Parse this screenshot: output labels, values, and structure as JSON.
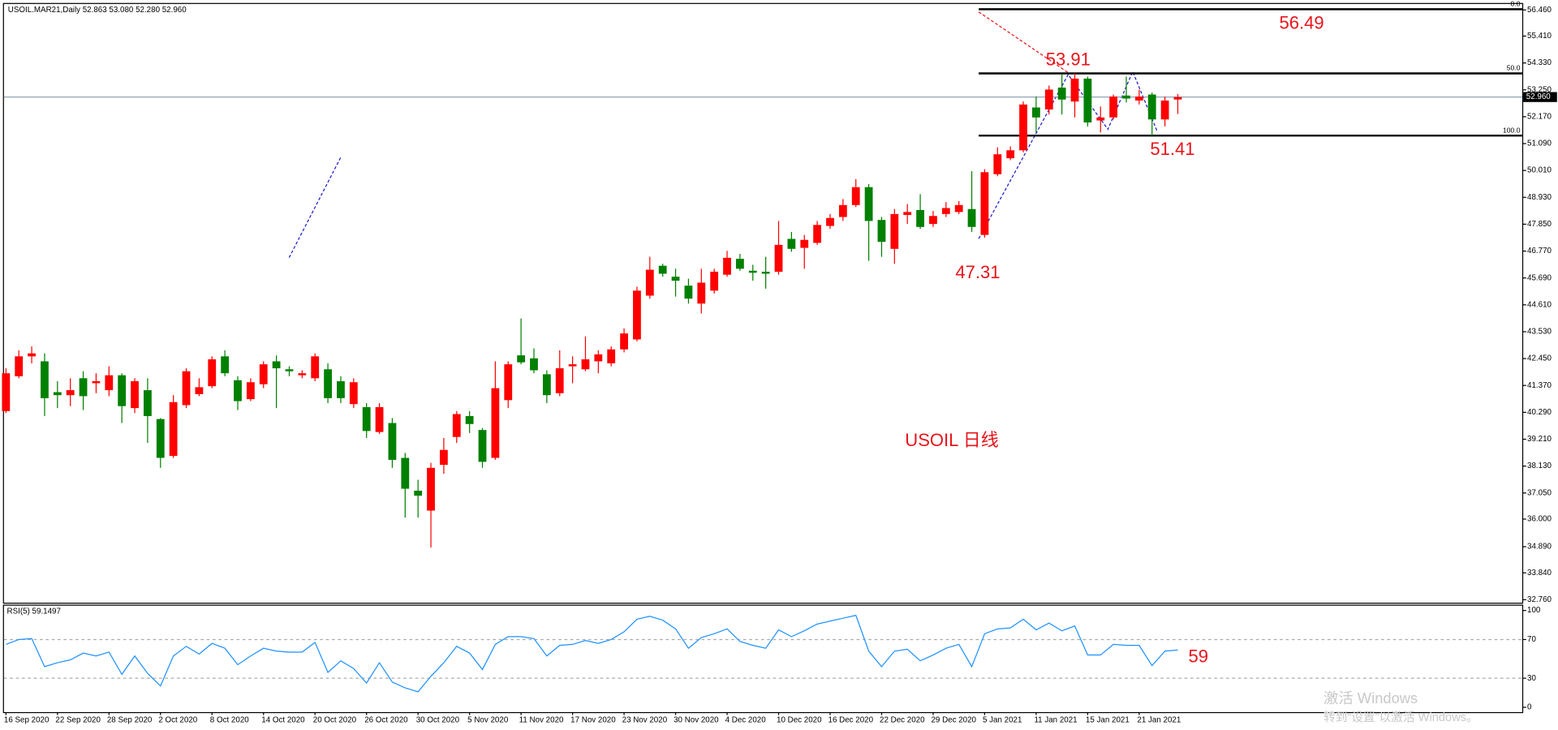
{
  "chart_data": [
    {
      "type": "candlestick",
      "header": "USOIL.MAR21,Daily  52.863 53.080 52.280 52.960",
      "categories": [
        "16 Sep 2020",
        null,
        null,
        null,
        "22 Sep 2020",
        null,
        null,
        null,
        "28 Sep 2020",
        null,
        null,
        null,
        "2 Oct 2020",
        null,
        null,
        null,
        "8 Oct 2020",
        null,
        null,
        null,
        "14 Oct 2020",
        null,
        null,
        null,
        "20 Oct 2020",
        null,
        null,
        null,
        "26 Oct 2020",
        null,
        null,
        null,
        "30 Oct 2020",
        null,
        null,
        null,
        "5 Nov 2020",
        null,
        null,
        null,
        "11 Nov 2020",
        null,
        null,
        null,
        "17 Nov 2020",
        null,
        null,
        null,
        "23 Nov 2020",
        null,
        null,
        null,
        "30 Nov 2020",
        null,
        null,
        null,
        "4 Dec 2020",
        null,
        null,
        null,
        "10 Dec 2020",
        null,
        null,
        null,
        "16 Dec 2020",
        null,
        null,
        null,
        "22 Dec 2020",
        null,
        null,
        null,
        "29 Dec 2020",
        null,
        null,
        null,
        "5 Jan 2021",
        null,
        null,
        null,
        "11 Jan 2021",
        null,
        null,
        null,
        "15 Jan 2021",
        null,
        null,
        null,
        "21 Jan 2021",
        null,
        null,
        null
      ],
      "open": [
        40.34,
        41.74,
        42.54,
        42.34,
        41.1,
        40.98,
        41.66,
        41.46,
        41.18,
        41.78,
        40.46,
        41.18,
        40.02,
        38.54,
        40.58,
        41.02,
        41.34,
        42.54,
        41.58,
        40.82,
        41.42,
        42.34,
        42.02,
        41.78,
        41.66,
        42.02,
        41.54,
        40.62,
        40.5,
        39.5,
        39.86,
        38.46,
        37.14,
        36.34,
        38.18,
        39.3,
        40.14,
        39.58,
        38.46,
        40.78,
        42.58,
        42.46,
        41.82,
        41.06,
        42.14,
        42.02,
        42.34,
        42.26,
        42.82,
        43.22,
        44.98,
        46.18,
        45.74,
        45.38,
        44.66,
        45.18,
        45.82,
        46.46,
        45.98,
        45.94,
        45.94,
        47.26,
        46.9,
        47.1,
        47.78,
        48.14,
        48.62,
        49.34,
        48.02,
        46.86,
        48.22,
        48.42,
        47.86,
        48.26,
        48.34,
        48.46,
        47.42,
        49.86,
        50.5,
        50.82,
        52.54,
        52.46,
        53.34,
        52.78,
        53.7,
        52.02,
        52.14,
        53.02,
        52.82,
        53.06,
        52.06,
        52.86
      ],
      "high": [
        42.06,
        42.78,
        42.94,
        42.66,
        41.54,
        41.66,
        41.94,
        41.86,
        42.14,
        41.86,
        41.66,
        41.66,
        40.06,
        40.98,
        42.06,
        41.66,
        42.54,
        42.78,
        41.74,
        41.66,
        42.34,
        42.58,
        42.14,
        41.98,
        42.66,
        42.26,
        41.74,
        41.66,
        40.66,
        40.66,
        40.06,
        38.66,
        37.58,
        38.26,
        39.26,
        40.34,
        40.34,
        39.66,
        42.34,
        42.34,
        44.06,
        42.86,
        41.98,
        42.78,
        42.54,
        43.34,
        42.78,
        42.94,
        43.66,
        45.34,
        46.54,
        46.26,
        46.06,
        45.66,
        46.06,
        46.06,
        46.78,
        46.66,
        46.22,
        46.54,
        47.98,
        47.54,
        47.42,
        47.98,
        48.26,
        48.86,
        49.66,
        49.46,
        48.14,
        48.46,
        48.66,
        49.06,
        48.38,
        48.74,
        48.78,
        49.98,
        50.06,
        50.94,
        50.98,
        52.78,
        52.98,
        53.42,
        53.86,
        53.91,
        53.78,
        52.58,
        53.06,
        53.78,
        53.26,
        53.14,
        52.98,
        53.08
      ],
      "low": [
        40.26,
        41.66,
        42.26,
        40.14,
        40.46,
        40.54,
        40.38,
        41.06,
        40.94,
        39.86,
        40.26,
        39.06,
        38.06,
        38.46,
        40.46,
        40.94,
        41.26,
        41.74,
        40.38,
        40.74,
        41.26,
        40.46,
        41.74,
        41.66,
        41.54,
        40.66,
        40.66,
        40.46,
        39.26,
        39.42,
        38.06,
        36.06,
        36.06,
        34.86,
        37.82,
        39.06,
        39.46,
        38.06,
        38.38,
        40.46,
        42.22,
        41.86,
        40.66,
        40.94,
        41.46,
        41.94,
        41.86,
        42.14,
        42.7,
        43.14,
        44.86,
        45.74,
        44.94,
        44.66,
        44.26,
        45.06,
        45.74,
        45.98,
        45.58,
        45.26,
        45.82,
        46.74,
        46.06,
        47.02,
        47.66,
        47.98,
        48.54,
        46.38,
        46.54,
        46.26,
        47.86,
        47.66,
        47.74,
        48.14,
        48.26,
        47.54,
        47.31,
        49.78,
        50.42,
        50.74,
        51.54,
        52.26,
        52.26,
        52.14,
        51.78,
        51.54,
        52.06,
        52.74,
        52.66,
        51.41,
        51.78,
        52.28
      ],
      "close": [
        41.86,
        42.54,
        42.66,
        40.86,
        40.98,
        41.18,
        40.94,
        41.54,
        41.78,
        40.54,
        41.54,
        40.14,
        38.46,
        40.7,
        41.94,
        41.3,
        42.42,
        41.86,
        40.74,
        41.5,
        42.22,
        42.06,
        41.94,
        41.86,
        42.54,
        40.86,
        40.86,
        41.5,
        39.54,
        40.5,
        38.38,
        37.22,
        36.94,
        38.06,
        38.78,
        40.22,
        39.82,
        38.3,
        41.26,
        42.22,
        42.3,
        41.98,
        40.98,
        42.06,
        42.22,
        42.42,
        42.62,
        42.82,
        43.46,
        45.18,
        46.02,
        45.86,
        45.58,
        44.86,
        45.5,
        45.94,
        46.5,
        46.06,
        45.9,
        45.86,
        47.02,
        46.86,
        47.22,
        47.82,
        48.1,
        48.62,
        49.34,
        47.98,
        47.14,
        48.26,
        48.34,
        47.74,
        48.18,
        48.5,
        48.62,
        47.74,
        49.94,
        50.66,
        50.82,
        52.66,
        52.14,
        53.26,
        52.86,
        53.7,
        51.94,
        52.14,
        52.98,
        52.9,
        52.98,
        52.06,
        52.82,
        52.96
      ],
      "up_color": "#ff0000",
      "down_color": "#008000",
      "ylim": [
        32.64,
        56.7
      ],
      "yticks": [
        {
          "value": 56.46,
          "label": "56.460"
        },
        {
          "value": 55.41,
          "label": "55.410"
        },
        {
          "value": 54.33,
          "label": "54.330"
        },
        {
          "value": 53.25,
          "label": "53.250"
        },
        {
          "value": 52.17,
          "label": "52.170"
        },
        {
          "value": 51.09,
          "label": "51.090"
        },
        {
          "value": 50.01,
          "label": "50.010"
        },
        {
          "value": 48.93,
          "label": "48.930"
        },
        {
          "value": 47.85,
          "label": "47.850"
        },
        {
          "value": 46.77,
          "label": "46.770"
        },
        {
          "value": 45.69,
          "label": "45.690"
        },
        {
          "value": 44.61,
          "label": "44.610"
        },
        {
          "value": 43.53,
          "label": "43.530"
        },
        {
          "value": 42.45,
          "label": "42.450"
        },
        {
          "value": 41.37,
          "label": "41.370"
        },
        {
          "value": 40.29,
          "label": "40.290"
        },
        {
          "value": 39.21,
          "label": "39.210"
        },
        {
          "value": 38.13,
          "label": "38.130"
        },
        {
          "value": 37.05,
          "label": "37.050"
        },
        {
          "value": 36.0,
          "label": "36.000"
        },
        {
          "value": 34.89,
          "label": "34.890"
        },
        {
          "value": 33.84,
          "label": "33.840"
        },
        {
          "value": 32.76,
          "label": "32.760"
        }
      ],
      "price_line": {
        "value": 52.96,
        "label": "52.960"
      },
      "fib_levels": [
        {
          "value": 56.49,
          "label": "0.0"
        },
        {
          "value": 53.91,
          "label": "50.0"
        },
        {
          "value": 51.41,
          "label": "100.0"
        }
      ],
      "annotations": [
        "56.49",
        "53.91",
        "51.41",
        "47.31",
        "USOIL 日线"
      ]
    },
    {
      "type": "line",
      "title": "RSI(5) 59.1497",
      "color": "#1e90ff",
      "values": [
        65,
        70,
        71,
        42,
        46,
        49,
        56,
        53,
        57,
        34,
        53,
        35,
        22,
        53,
        63,
        55,
        66,
        61,
        44,
        53,
        61,
        58,
        57,
        57,
        67,
        36,
        48,
        40,
        25,
        46,
        26,
        20,
        16,
        32,
        46,
        63,
        56,
        39,
        65,
        73,
        73,
        71,
        53,
        64,
        65,
        69,
        66,
        70,
        78,
        91,
        94,
        90,
        81,
        61,
        72,
        76,
        81,
        68,
        64,
        61,
        80,
        73,
        79,
        86,
        89,
        92,
        95,
        58,
        42,
        58,
        60,
        48,
        54,
        61,
        65,
        42,
        76,
        81,
        82,
        91,
        80,
        87,
        79,
        84,
        54,
        54,
        65,
        64,
        64,
        43,
        58,
        59.1497
      ],
      "ylim": [
        -5,
        106
      ],
      "yticks": [
        100,
        70,
        30,
        0
      ],
      "levels": [
        70,
        30
      ],
      "annotations": [
        "59"
      ]
    }
  ],
  "watermark": [
    "激活 Windows",
    "转到“设置”以激活 Windows。"
  ]
}
